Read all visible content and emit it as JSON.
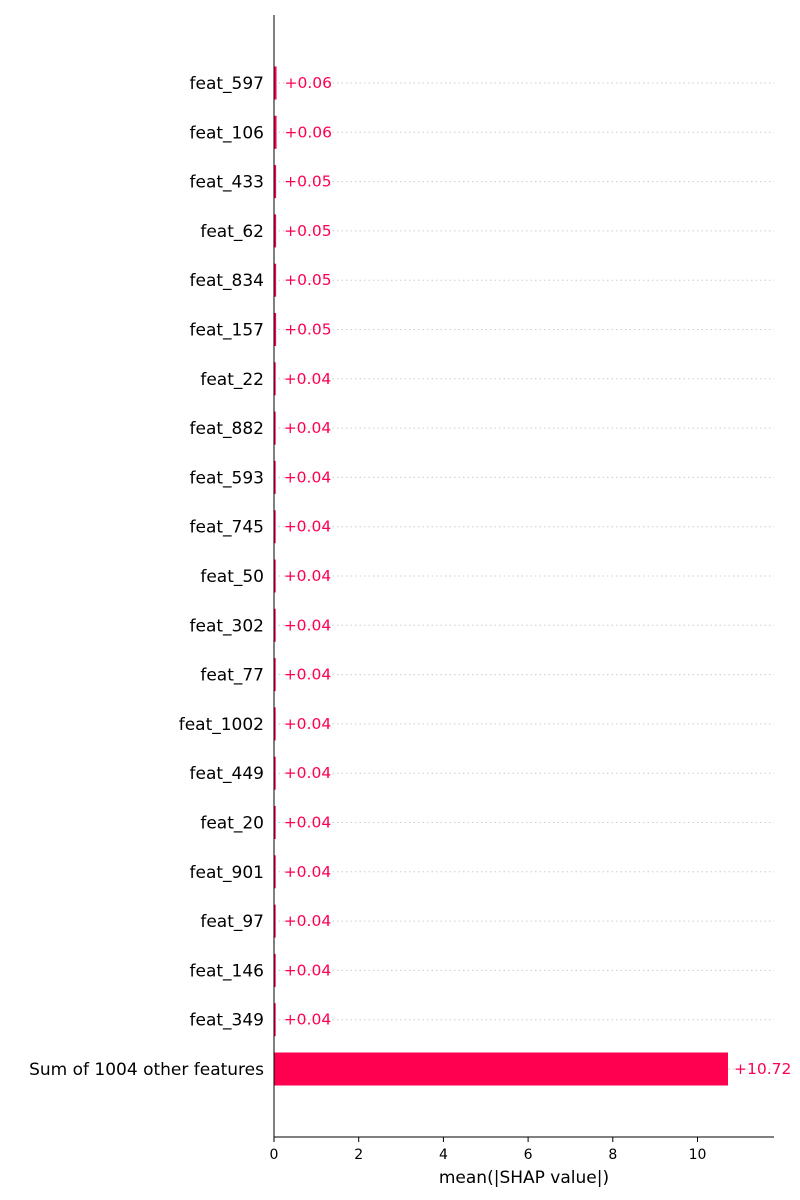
{
  "chart_data": {
    "type": "bar",
    "orientation": "horizontal",
    "categories": [
      "feat_597",
      "feat_106",
      "feat_433",
      "feat_62",
      "feat_834",
      "feat_157",
      "feat_22",
      "feat_882",
      "feat_593",
      "feat_745",
      "feat_50",
      "feat_302",
      "feat_77",
      "feat_1002",
      "feat_449",
      "feat_20",
      "feat_901",
      "feat_97",
      "feat_146",
      "feat_349",
      "Sum of 1004 other features"
    ],
    "values": [
      0.06,
      0.06,
      0.05,
      0.05,
      0.05,
      0.05,
      0.04,
      0.04,
      0.04,
      0.04,
      0.04,
      0.04,
      0.04,
      0.04,
      0.04,
      0.04,
      0.04,
      0.04,
      0.04,
      0.04,
      10.72
    ],
    "value_labels": [
      "+0.06",
      "+0.06",
      "+0.05",
      "+0.05",
      "+0.05",
      "+0.05",
      "+0.04",
      "+0.04",
      "+0.04",
      "+0.04",
      "+0.04",
      "+0.04",
      "+0.04",
      "+0.04",
      "+0.04",
      "+0.04",
      "+0.04",
      "+0.04",
      "+0.04",
      "+0.04",
      "+10.72"
    ],
    "xlabel": "mean(|SHAP value|)",
    "xticks": [
      0,
      2,
      4,
      6,
      8,
      10
    ],
    "xlim": [
      0,
      11.8
    ],
    "grid": "dotted horizontal guide lines per row",
    "bar_color": "#ff0051"
  }
}
